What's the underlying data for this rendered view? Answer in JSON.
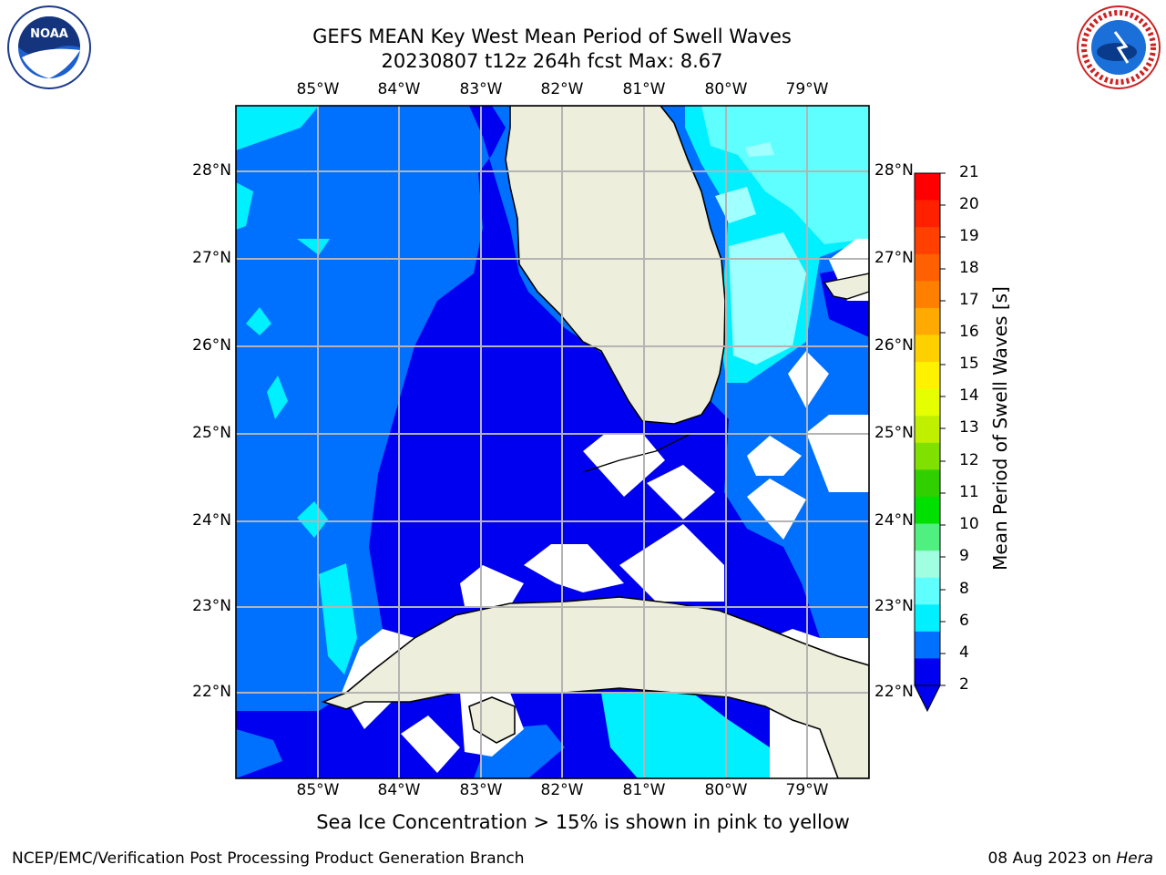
{
  "title_line1": "GEFS MEAN Key West Mean Period of Swell Waves",
  "title_line2": "20230807 t12z 264h fcst   Max: 8.67",
  "lon_labels": [
    "85°W",
    "84°W",
    "83°W",
    "82°W",
    "81°W",
    "80°W",
    "79°W"
  ],
  "lat_labels": [
    "28°N",
    "27°N",
    "26°N",
    "25°N",
    "24°N",
    "23°N",
    "22°N"
  ],
  "colorbar": {
    "title": "Mean Period of Swell Waves [s]",
    "ticks": [
      "21",
      "20",
      "19",
      "18",
      "17",
      "16",
      "15",
      "14",
      "13",
      "12",
      "11",
      "10",
      "9",
      "8",
      "6",
      "4",
      "2"
    ],
    "colors": [
      "#ff0000",
      "#ff2000",
      "#ff4000",
      "#ff6000",
      "#ff8000",
      "#ffaa00",
      "#ffd000",
      "#fff200",
      "#e6ff00",
      "#c0f000",
      "#80e000",
      "#30d000",
      "#00e000",
      "#50f080",
      "#a0ffe0",
      "#60ffff",
      "#00f0ff",
      "#0070ff",
      "#0000f0"
    ]
  },
  "ice_note": "Sea Ice Concentration > 15% is shown in pink to yellow",
  "footer_left": "NCEP/EMC/Verification Post Processing Product Generation Branch",
  "footer_date": "08 Aug 2023 on",
  "footer_machine": "Hera",
  "colors": {
    "land": "#eeeedc",
    "lvl_2_4": "#0000f0",
    "lvl_4_6": "#0070ff",
    "lvl_6_8": "#00f0ff",
    "lvl_8_9": "#60ffff",
    "lvl_9_10": "#a0ffff",
    "no_data": "#ffffff",
    "grid": "#b4b4b4"
  },
  "logos": {
    "left": "noaa-logo",
    "right": "nws-logo"
  }
}
